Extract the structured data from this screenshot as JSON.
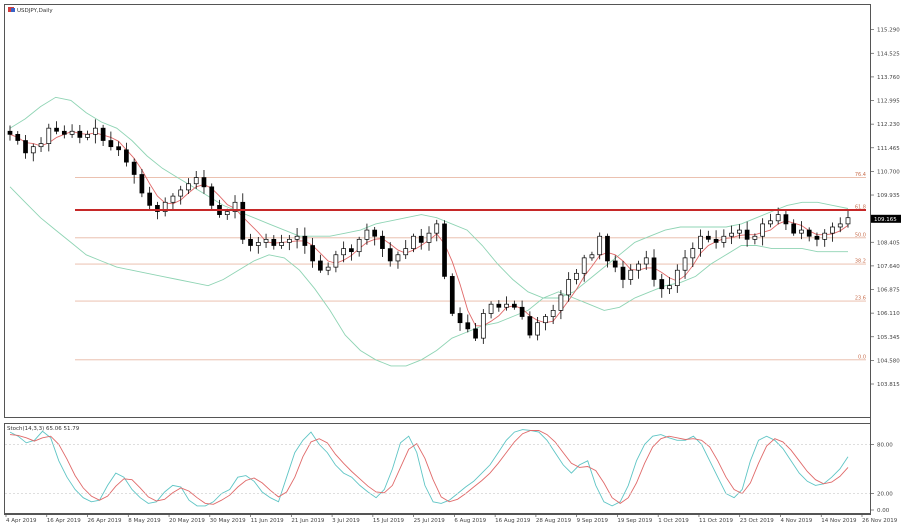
{
  "window": {
    "title": "USDJPY,Daily",
    "icon": "chart-window-icon"
  },
  "indicator": {
    "label": "Stoch(14,3,3) 65.06 51.79"
  },
  "colors": {
    "candle": "#000000",
    "ma_red": "#e06a6a",
    "bollinger": "#8fd4b4",
    "fib_line": "#e8b8a4",
    "resistance": "#c62828",
    "stoch_main": "#5fc5c5",
    "stoch_signal": "#e06a6a",
    "frame": "#555555",
    "price_box": "#000000"
  },
  "chart_data": [
    {
      "type": "candlestick",
      "title": "USDJPY,Daily",
      "ylim": [
        103.2,
        115.7
      ],
      "y_ticks": [
        "115.290",
        "114.525",
        "113.760",
        "112.995",
        "112.230",
        "111.465",
        "110.700",
        "109.935",
        "109.165",
        "108.405",
        "107.640",
        "106.875",
        "106.110",
        "105.345",
        "104.580",
        "103.815"
      ],
      "current_price": "109.165",
      "x_ticks": [
        "4 Apr 2019",
        "16 Apr 2019",
        "26 Apr 2019",
        "8 May 2019",
        "20 May 2019",
        "30 May 2019",
        "11 Jun 2019",
        "21 Jun 2019",
        "3 Jul 2019",
        "15 Jul 2019",
        "25 Jul 2019",
        "6 Aug 2019",
        "16 Aug 2019",
        "28 Aug 2019",
        "9 Sep 2019",
        "19 Sep 2019",
        "1 Oct 2019",
        "11 Oct 2019",
        "23 Oct 2019",
        "4 Nov 2019",
        "14 Nov 2019",
        "26 Nov 2019"
      ],
      "close_path": [
        111.9,
        111.7,
        111.3,
        111.5,
        111.6,
        112.1,
        112.0,
        111.9,
        112.0,
        111.8,
        111.9,
        112.1,
        111.7,
        111.5,
        111.4,
        111.0,
        110.6,
        110.0,
        109.6,
        109.4,
        109.7,
        109.9,
        110.1,
        110.3,
        110.5,
        110.2,
        109.6,
        109.3,
        109.4,
        109.7,
        108.5,
        108.3,
        108.4,
        108.5,
        108.3,
        108.4,
        108.5,
        108.6,
        108.3,
        107.8,
        107.5,
        107.6,
        108.0,
        108.2,
        108.1,
        108.5,
        108.8,
        108.6,
        108.2,
        107.8,
        108.0,
        108.2,
        108.6,
        108.4,
        108.7,
        109.0,
        107.3,
        106.1,
        105.8,
        105.6,
        105.3,
        106.1,
        106.4,
        106.3,
        106.4,
        106.3,
        106.0,
        105.4,
        105.8,
        106.0,
        106.2,
        106.7,
        107.2,
        107.4,
        107.9,
        108.0,
        108.6,
        107.8,
        107.6,
        107.2,
        107.5,
        107.7,
        107.9,
        107.2,
        106.9,
        107.0,
        107.5,
        107.9,
        108.2,
        108.6,
        108.5,
        108.4,
        108.6,
        108.7,
        108.8,
        108.5,
        108.6,
        109.0,
        109.1,
        109.3,
        109.0,
        108.7,
        108.8,
        108.6,
        108.5,
        108.7,
        108.9,
        109.0,
        109.2
      ],
      "bollinger_upper": [
        112.1,
        112.4,
        112.8,
        113.1,
        113.0,
        112.6,
        112.3,
        112.1,
        111.7,
        111.2,
        110.8,
        110.5,
        110.2,
        109.9,
        109.6,
        109.4,
        109.2,
        109.0,
        108.8,
        108.6,
        108.6,
        108.6,
        108.7,
        108.8,
        109.0,
        109.1,
        109.2,
        109.3,
        109.2,
        109.0,
        108.8,
        108.3,
        107.7,
        107.2,
        106.8,
        106.6,
        106.6,
        106.8,
        107.2,
        107.6,
        108.0,
        108.4,
        108.6,
        108.8,
        108.9,
        108.9,
        108.9,
        108.9,
        109.0,
        109.2,
        109.4,
        109.6,
        109.7,
        109.7,
        109.6,
        109.5
      ],
      "bollinger_lower": [
        110.2,
        109.7,
        109.2,
        108.8,
        108.4,
        108.0,
        107.8,
        107.6,
        107.5,
        107.4,
        107.3,
        107.2,
        107.1,
        107.0,
        107.2,
        107.5,
        107.8,
        108.0,
        107.9,
        107.5,
        106.9,
        106.2,
        105.4,
        104.9,
        104.6,
        104.4,
        104.4,
        104.6,
        104.9,
        105.3,
        105.5,
        105.7,
        105.8,
        106.0,
        106.2,
        106.6,
        106.8,
        106.6,
        106.4,
        106.2,
        106.3,
        106.6,
        106.8,
        107.0,
        107.1,
        107.3,
        107.7,
        108.0,
        108.3,
        108.3,
        108.2,
        108.2,
        108.2,
        108.1,
        108.1,
        108.1
      ],
      "fib_levels": [
        {
          "label": "76.4",
          "price": 110.5
        },
        {
          "label": "61.8",
          "price": 109.45
        },
        {
          "label": "50.0",
          "price": 108.55
        },
        {
          "label": "38.2",
          "price": 107.7
        },
        {
          "label": "23.6",
          "price": 106.5
        },
        {
          "label": "0.0",
          "price": 104.6
        }
      ],
      "resistance_price": 109.45
    },
    {
      "type": "line",
      "title": "Stoch(14,3,3) 65.06 51.79",
      "ylim": [
        0,
        100
      ],
      "y_ticks": [
        "80.00",
        "20.00",
        "0.00"
      ],
      "series": [
        {
          "name": "main",
          "values": [
            95,
            90,
            82,
            85,
            96,
            88,
            60,
            40,
            25,
            15,
            10,
            12,
            30,
            45,
            40,
            25,
            15,
            8,
            10,
            22,
            30,
            28,
            12,
            5,
            5,
            10,
            20,
            25,
            40,
            42,
            35,
            22,
            15,
            10,
            40,
            70,
            85,
            95,
            80,
            70,
            55,
            45,
            40,
            30,
            22,
            15,
            25,
            50,
            82,
            90,
            70,
            30,
            10,
            8,
            12,
            20,
            28,
            35,
            45,
            55,
            70,
            85,
            95,
            98,
            97,
            95,
            85,
            70,
            55,
            45,
            55,
            60,
            30,
            10,
            5,
            10,
            30,
            60,
            80,
            90,
            92,
            88,
            85,
            85,
            90,
            80,
            60,
            40,
            20,
            15,
            25,
            60,
            85,
            90,
            85,
            75,
            60,
            45,
            35,
            30,
            32,
            40,
            50,
            65
          ]
        },
        {
          "name": "signal",
          "values": [
            92,
            91,
            88,
            84,
            88,
            90,
            80,
            62,
            42,
            27,
            17,
            12,
            17,
            29,
            38,
            37,
            27,
            16,
            11,
            13,
            21,
            27,
            23,
            15,
            8,
            7,
            12,
            18,
            28,
            36,
            39,
            33,
            24,
            16,
            22,
            40,
            65,
            83,
            87,
            82,
            68,
            57,
            47,
            38,
            29,
            22,
            21,
            30,
            52,
            74,
            81,
            63,
            37,
            16,
            10,
            13,
            20,
            28,
            36,
            45,
            57,
            70,
            83,
            93,
            97,
            97,
            92,
            83,
            70,
            57,
            52,
            53,
            48,
            33,
            15,
            8,
            15,
            33,
            57,
            77,
            87,
            90,
            88,
            86,
            87,
            85,
            77,
            60,
            40,
            25,
            20,
            33,
            57,
            78,
            87,
            83,
            73,
            60,
            47,
            37,
            32,
            34,
            41,
            52
          ]
        }
      ]
    }
  ]
}
